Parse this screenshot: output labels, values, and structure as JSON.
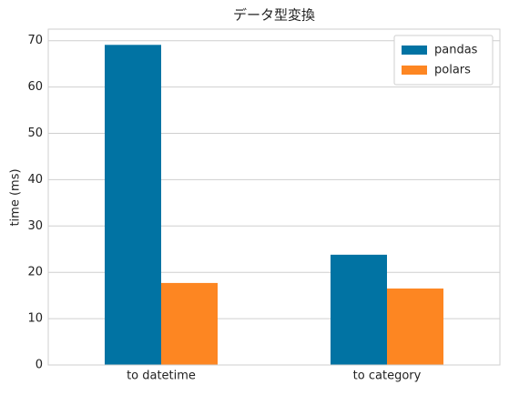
{
  "chart_data": {
    "type": "bar",
    "title": "データ型変換",
    "y_label": "time (ms)",
    "categories": [
      "to datetime",
      "to category"
    ],
    "series": [
      {
        "name": "pandas",
        "color": "#0173a3",
        "values": [
          69.1,
          23.8
        ]
      },
      {
        "name": "polars",
        "color": "#fd8622",
        "values": [
          17.7,
          16.5
        ]
      }
    ],
    "ylim": [
      0,
      72.5
    ],
    "yticks": [
      0,
      10,
      20,
      30,
      40,
      50,
      60,
      70
    ],
    "grid": true,
    "legend": "upper right"
  }
}
